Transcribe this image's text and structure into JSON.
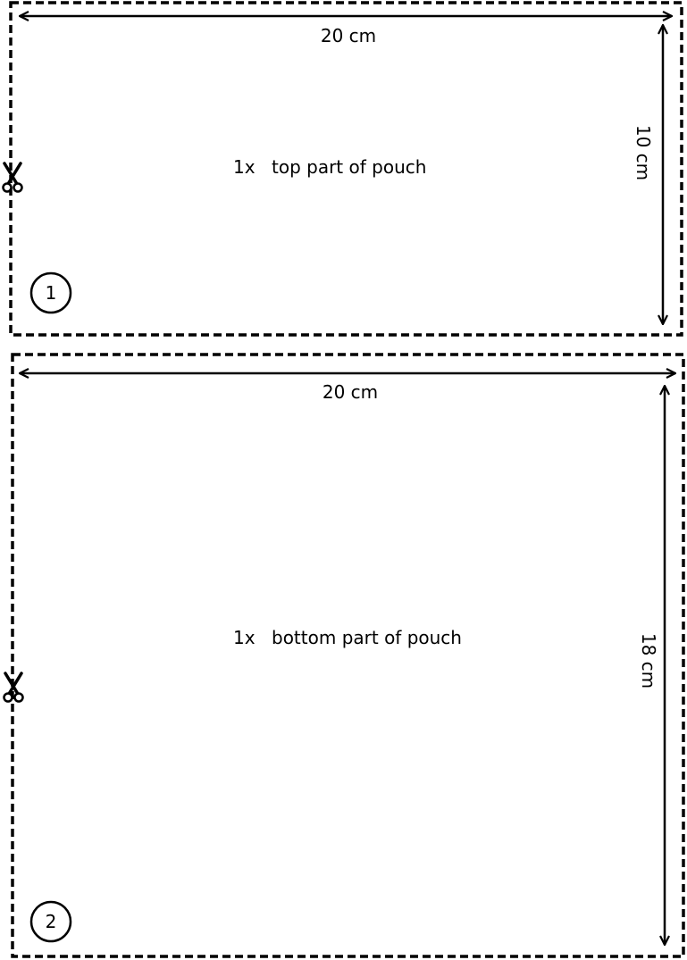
{
  "pieces": [
    {
      "number": "1",
      "width_label": "20 cm",
      "height_label": "10 cm",
      "quantity": "1x",
      "description": "top part of pouch",
      "scissors_icon": "scissors-icon"
    },
    {
      "number": "2",
      "width_label": "20 cm",
      "height_label": "18 cm",
      "quantity": "1x",
      "description": "bottom part of pouch",
      "scissors_icon": "scissors-icon"
    }
  ],
  "colors": {
    "line": "#000000",
    "background": "#ffffff"
  }
}
